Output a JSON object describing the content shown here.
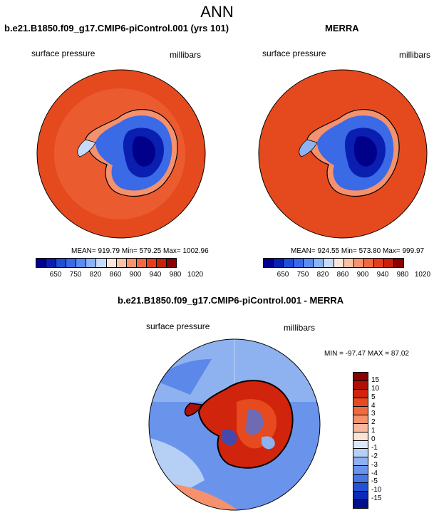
{
  "page_title": "ANN",
  "panels": [
    {
      "title": "b.e21.B1850.f09_g17.CMIP6-piControl.001 (yrs 101)",
      "variable": "surface pressure",
      "units": "millibars",
      "stats": "MEAN= 919.79  Min= 579.25  Max= 1002.96"
    },
    {
      "title": "MERRA",
      "variable": "surface pressure",
      "units": "millibars",
      "stats": "MEAN= 924.55  Min= 573.80  Max= 999.97"
    }
  ],
  "diff_panel": {
    "title": "b.e21.B1850.f09_g17.CMIP6-piControl.001 - MERRA",
    "variable": "surface pressure",
    "units": "millibars",
    "stats": "MIN = -97.47 MAX =  87.02"
  },
  "colorbar_top": {
    "labels": [
      "650",
      "750",
      "820",
      "860",
      "900",
      "940",
      "980",
      "1020"
    ],
    "colors": [
      "#00008b",
      "#0a1fb0",
      "#1f4fd2",
      "#3a6ae6",
      "#5c8cf0",
      "#8cb3f5",
      "#c7dbf9",
      "#fbe6dc",
      "#f8c2a6",
      "#f49570",
      "#ee6a45",
      "#e43e1f",
      "#c9200c",
      "#8b0000"
    ]
  },
  "colorbar_diff": {
    "labels": [
      "15",
      "10",
      "5",
      "4",
      "3",
      "2",
      "1",
      "0",
      "-1",
      "-2",
      "-3",
      "-4",
      "-5",
      "-10",
      "-15"
    ],
    "colors": [
      "#8b0000",
      "#b00f05",
      "#d0240c",
      "#e64a1e",
      "#f06a40",
      "#f5916c",
      "#f9b89c",
      "#fde3d3",
      "#dbe8fa",
      "#b6cff5",
      "#8eb2f0",
      "#6a94ec",
      "#4776e6",
      "#2252d6",
      "#0a2cb8",
      "#00108c"
    ]
  }
}
